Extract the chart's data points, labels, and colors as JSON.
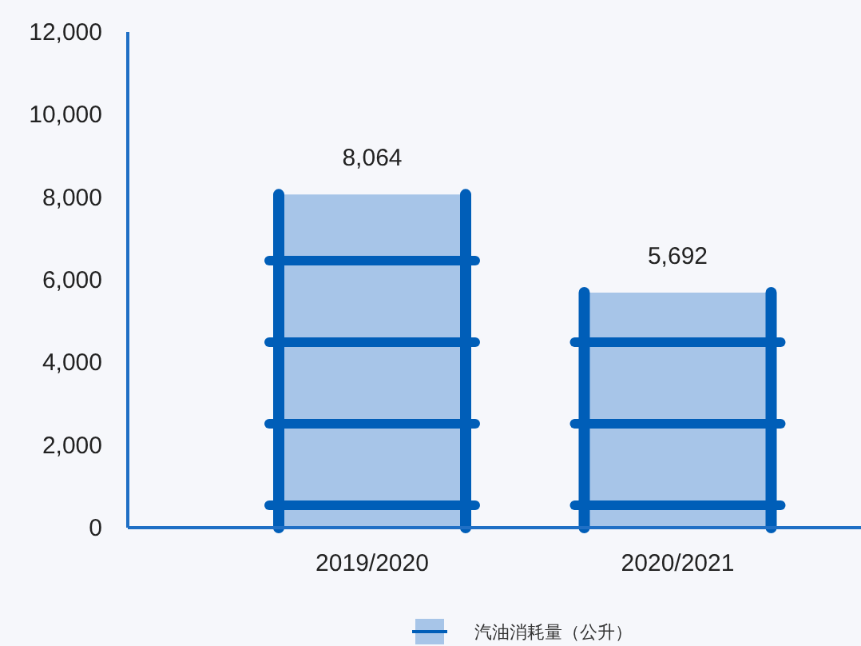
{
  "chart_data": {
    "type": "bar",
    "categories": [
      "2019/2020",
      "2020/2021"
    ],
    "series": [
      {
        "name": "汽油消耗量（公升）",
        "color": "#a7c5e8",
        "values": [
          8064,
          5692
        ],
        "value_labels": [
          "8,064",
          "5,692"
        ]
      }
    ],
    "ylim": [
      0,
      12000
    ],
    "yticks": [
      0,
      {
        "value": 2000,
        "label": "2,000"
      },
      {
        "value": 4000,
        "label": "4,000"
      },
      {
        "value": 6000,
        "label": "6,000"
      },
      {
        "value": 8000,
        "label": "8,000"
      },
      {
        "value": 10000,
        "label": "10,000"
      },
      {
        "value": 12000,
        "label": "12,000"
      }
    ],
    "legend": "bottom"
  }
}
